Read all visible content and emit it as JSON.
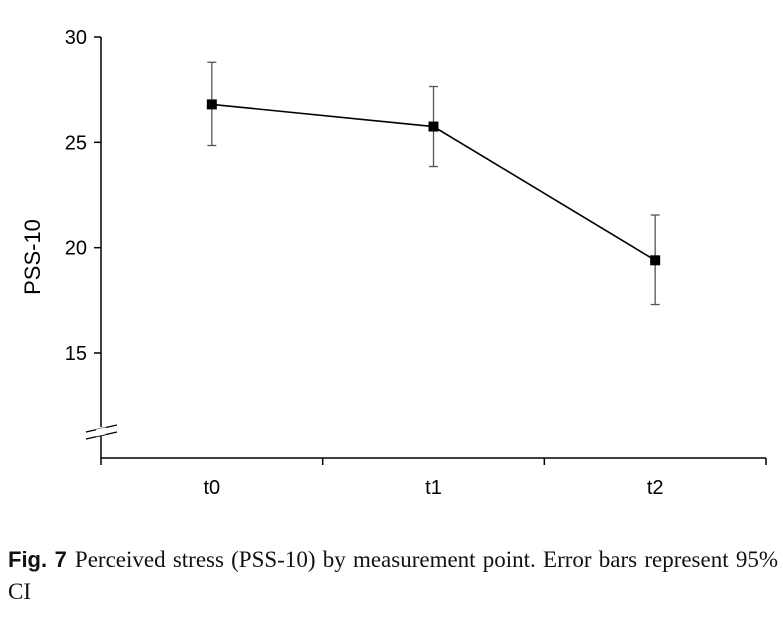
{
  "chart_data": {
    "type": "line",
    "categories": [
      "t0",
      "t1",
      "t2"
    ],
    "series": [
      {
        "values": [
          26.8,
          25.75,
          19.4
        ],
        "ci_lower": [
          24.85,
          23.85,
          17.3
        ],
        "ci_upper": [
          28.8,
          27.65,
          21.55
        ]
      }
    ],
    "ylabel": "PSS-10",
    "xlabel": "",
    "ylim": [
      10,
      30
    ],
    "yticks": [
      15,
      20,
      25,
      30
    ],
    "axis_break": "y-axis-bottom",
    "grid": false,
    "line_color": "#000000",
    "marker": "square"
  },
  "caption": {
    "label": "Fig. 7",
    "text": "Perceived stress (PSS-10) by measurement point. Error bars represent 95% CI"
  }
}
